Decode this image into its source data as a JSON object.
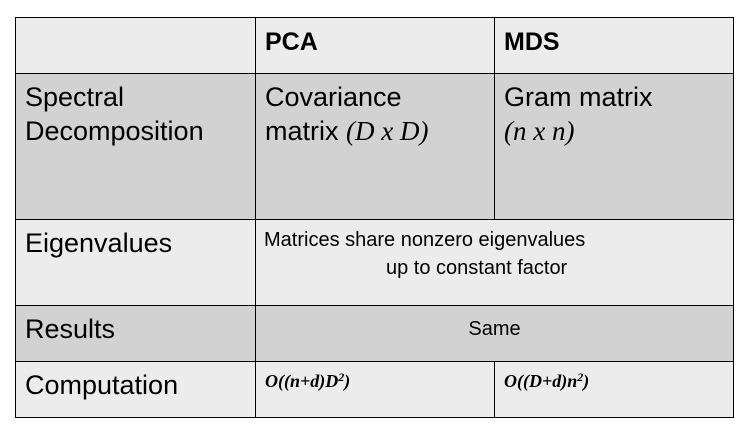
{
  "headers": [
    "",
    "PCA",
    "MDS"
  ],
  "rows": [
    {
      "label": "Spectral Decomposition",
      "label_line1": "Spectral",
      "label_line2": "Decomposition",
      "pca": {
        "line1": "Covariance",
        "line2_text": "matrix ",
        "line2_math": "(D x D)"
      },
      "mds": {
        "line1": "Gram matrix",
        "line2_math": "(n x n)"
      }
    },
    {
      "label": "Eigenvalues",
      "merged_line1": "Matrices share nonzero eigenvalues",
      "merged_line2": "up to constant factor"
    },
    {
      "label": "Results",
      "merged": "Same"
    },
    {
      "label": "Computation",
      "pca": {
        "base": "O((n+d)D",
        "sup": "2",
        "close": ")"
      },
      "mds": {
        "base": "O((D+d)n",
        "sup": "2",
        "close": ")"
      }
    }
  ],
  "colors": {
    "light_cell": "#ececec",
    "dark_cell": "#d2d2d2",
    "border": "#000000"
  }
}
